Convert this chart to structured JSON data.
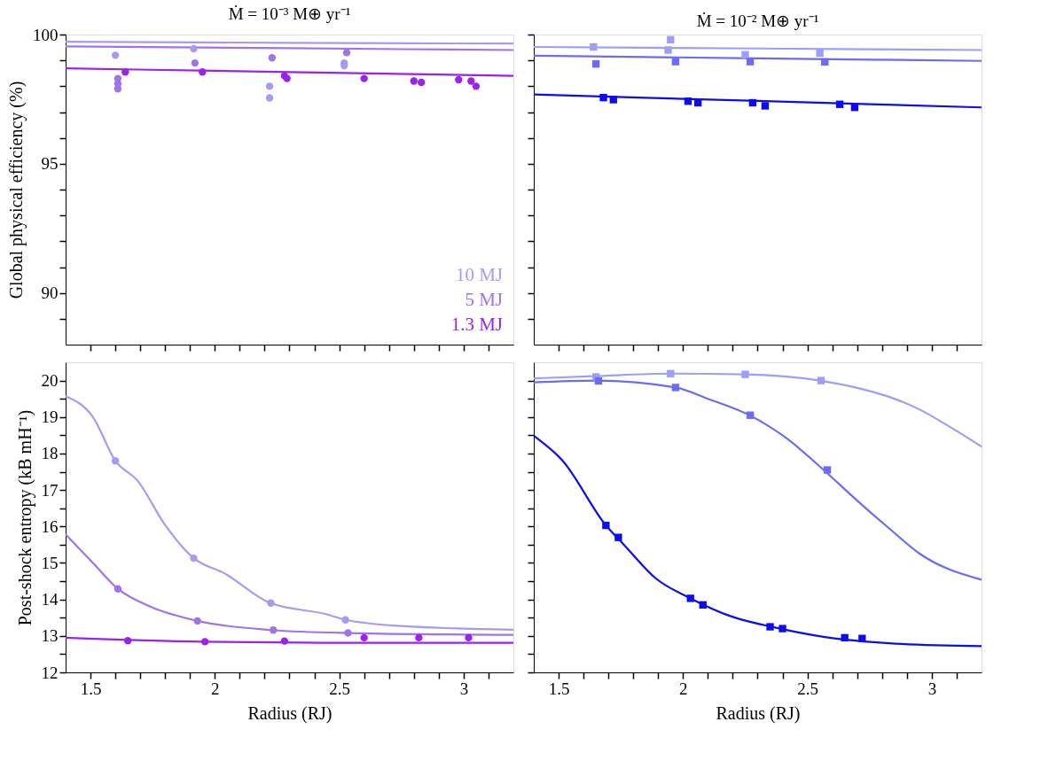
{
  "chart_data": [
    {
      "type": "line",
      "title": "Ṁ = 10⁻³ M⊕ yr⁻¹",
      "ylabel": "Global physical efficiency (%)",
      "xlim": [
        1.4,
        3.2
      ],
      "ylim": [
        88,
        100
      ],
      "xticks": [
        1.5,
        {
          "value": 1.6,
          "label": null
        },
        {
          "value": 1.7,
          "label": null
        },
        {
          "value": 1.8,
          "label": null
        },
        {
          "value": 1.9,
          "label": null
        },
        2,
        {
          "value": 2.1,
          "label": null
        },
        {
          "value": 2.2,
          "label": null
        },
        {
          "value": 2.3,
          "label": null
        },
        {
          "value": 2.4,
          "label": null
        },
        2.5,
        {
          "value": 2.6,
          "label": null
        },
        {
          "value": 2.7,
          "label": null
        },
        {
          "value": 2.8,
          "label": null
        },
        {
          "value": 2.9,
          "label": null
        },
        3,
        {
          "value": 3.1,
          "label": null
        }
      ],
      "yticks": [
        {
          "value": 89,
          "label": null
        },
        90,
        {
          "value": 91,
          "label": null
        },
        {
          "value": 92,
          "label": null
        },
        {
          "value": 93,
          "label": null
        },
        {
          "value": 94,
          "label": null
        },
        95,
        {
          "value": 96,
          "label": null
        },
        {
          "value": 97,
          "label": null
        },
        {
          "value": 98,
          "label": null
        },
        {
          "value": 99,
          "label": null
        },
        100
      ],
      "tick_labels": "y",
      "grid": false,
      "legend": "bottom right",
      "line_style": "solid",
      "series": [
        {
          "name": "10 MJ",
          "color": "#a99af0",
          "marker": "none",
          "x": [
            1.4,
            2.3,
            3.2
          ],
          "values": [
            99.72,
            99.68,
            99.65
          ]
        },
        {
          "name": "5 MJ",
          "color": "#a172ea",
          "marker": "none",
          "x": [
            1.4,
            2.3,
            3.2
          ],
          "values": [
            99.54,
            99.47,
            99.4
          ]
        },
        {
          "name": "1.3 MJ",
          "color": "#9b22ea",
          "marker": "none",
          "x": [
            1.4,
            2.3,
            3.2
          ],
          "values": [
            98.69,
            98.55,
            98.4
          ]
        },
        {
          "type": "scatter",
          "color": "#a99af0",
          "marker": "circle",
          "x": [
            1.6,
            1.915,
            2.22,
            2.22,
            2.52,
            2.52
          ],
          "values": [
            99.2,
            99.45,
            98.0,
            97.55,
            98.9,
            98.8
          ]
        },
        {
          "type": "scatter",
          "color": "#a172ea",
          "marker": "circle",
          "x": [
            1.61,
            1.61,
            1.61,
            1.92,
            2.23,
            2.53
          ],
          "values": [
            98.3,
            98.1,
            97.9,
            98.9,
            99.1,
            99.3
          ]
        },
        {
          "type": "scatter",
          "color": "#9b22ea",
          "marker": "circle",
          "x": [
            1.64,
            1.95,
            2.28,
            2.29,
            2.6,
            2.8,
            2.83,
            2.98,
            3.03,
            3.05
          ],
          "values": [
            98.55,
            98.55,
            98.4,
            98.3,
            98.3,
            98.2,
            98.15,
            98.25,
            98.2,
            98.0
          ]
        }
      ]
    },
    {
      "type": "line",
      "title": "Ṁ = 10⁻² M⊕ yr⁻¹",
      "xlim": [
        1.4,
        3.2
      ],
      "ylim": [
        88,
        100
      ],
      "xticks": [
        1.5,
        {
          "value": 1.6,
          "label": null
        },
        {
          "value": 1.7,
          "label": null
        },
        {
          "value": 1.8,
          "label": null
        },
        {
          "value": 1.9,
          "label": null
        },
        2,
        {
          "value": 2.1,
          "label": null
        },
        {
          "value": 2.2,
          "label": null
        },
        {
          "value": 2.3,
          "label": null
        },
        {
          "value": 2.4,
          "label": null
        },
        2.5,
        {
          "value": 2.6,
          "label": null
        },
        {
          "value": 2.7,
          "label": null
        },
        {
          "value": 2.8,
          "label": null
        },
        {
          "value": 2.9,
          "label": null
        },
        3,
        {
          "value": 3.1,
          "label": null
        }
      ],
      "yticks": [
        {
          "value": 89,
          "label": null
        },
        90,
        {
          "value": 91,
          "label": null
        },
        {
          "value": 92,
          "label": null
        },
        {
          "value": 93,
          "label": null
        },
        {
          "value": 94,
          "label": null
        },
        95,
        {
          "value": 96,
          "label": null
        },
        {
          "value": 97,
          "label": null
        },
        {
          "value": 98,
          "label": null
        },
        {
          "value": 99,
          "label": null
        },
        100
      ],
      "tick_labels": false,
      "grid": false,
      "line_style": "solid",
      "series": [
        {
          "color": "#9d9dfa",
          "marker": "none",
          "x": [
            1.4,
            2.3,
            3.2
          ],
          "values": [
            99.52,
            99.46,
            99.4
          ]
        },
        {
          "color": "#6b6bf6",
          "marker": "none",
          "x": [
            1.4,
            2.3,
            3.2
          ],
          "values": [
            99.18,
            99.08,
            98.98
          ]
        },
        {
          "color": "#0c0cf0",
          "marker": "none",
          "x": [
            1.4,
            2.3,
            3.2
          ],
          "values": [
            97.68,
            97.43,
            97.18
          ]
        },
        {
          "type": "scatter",
          "color": "#9d9dfa",
          "marker": "square",
          "x": [
            1.64,
            1.95,
            1.94,
            2.25,
            2.55
          ],
          "values": [
            99.52,
            99.8,
            99.4,
            99.22,
            99.28
          ]
        },
        {
          "type": "scatter",
          "color": "#6b6bf6",
          "marker": "square",
          "x": [
            1.65,
            1.97,
            2.27,
            2.57
          ],
          "values": [
            98.86,
            98.95,
            98.95,
            98.94
          ]
        },
        {
          "type": "scatter",
          "color": "#0c0cf0",
          "marker": "square",
          "x": [
            1.68,
            1.72,
            2.02,
            2.06,
            2.28,
            2.33,
            2.63,
            2.69
          ],
          "values": [
            97.56,
            97.48,
            97.42,
            97.36,
            97.36,
            97.24,
            97.3,
            97.18
          ]
        }
      ]
    },
    {
      "type": "line",
      "xlabel": "Radius (RJ)",
      "ylabel": "Post-shock entropy (kB mH⁻¹)",
      "xlim": [
        1.4,
        3.2
      ],
      "ylim": [
        12,
        20.5
      ],
      "xticks": [
        1.5,
        {
          "value": 1.6,
          "label": null
        },
        {
          "value": 1.7,
          "label": null
        },
        {
          "value": 1.8,
          "label": null
        },
        {
          "value": 1.9,
          "label": null
        },
        2,
        {
          "value": 2.1,
          "label": null
        },
        {
          "value": 2.2,
          "label": null
        },
        {
          "value": 2.3,
          "label": null
        },
        {
          "value": 2.4,
          "label": null
        },
        2.5,
        {
          "value": 2.6,
          "label": null
        },
        {
          "value": 2.7,
          "label": null
        },
        {
          "value": 2.8,
          "label": null
        },
        {
          "value": 2.9,
          "label": null
        },
        3,
        {
          "value": 3.1,
          "label": null
        }
      ],
      "yticks": [
        12,
        {
          "value": 12.5,
          "label": null
        },
        13,
        {
          "value": 13.5,
          "label": null
        },
        14,
        {
          "value": 14.5,
          "label": null
        },
        15,
        {
          "value": 15.5,
          "label": null
        },
        16,
        {
          "value": 16.5,
          "label": null
        },
        17,
        {
          "value": 17.5,
          "label": null
        },
        18,
        {
          "value": 18.5,
          "label": null
        },
        19,
        {
          "value": 19.5,
          "label": null
        },
        20
      ],
      "grid": false,
      "line_style": "solid",
      "series": [
        {
          "color": "#a99af0",
          "marker": "none",
          "x": [
            1.4,
            1.51,
            1.6,
            1.69,
            1.8,
            1.915,
            2.04,
            2.22,
            2.45,
            2.52,
            2.75,
            3.2
          ],
          "values": [
            19.57,
            19.0,
            17.8,
            17.25,
            16.04,
            15.13,
            14.71,
            13.91,
            13.59,
            13.45,
            13.27,
            13.17
          ]
        },
        {
          "color": "#a172ea",
          "marker": "none",
          "x": [
            1.4,
            1.51,
            1.61,
            1.745,
            1.93,
            2.23,
            2.535,
            3.2
          ],
          "values": [
            15.78,
            15.0,
            14.29,
            13.79,
            13.41,
            13.16,
            13.08,
            13.03
          ]
        },
        {
          "color": "#9b22ea",
          "marker": "none",
          "x": [
            1.4,
            1.95,
            2.51,
            3.2
          ],
          "values": [
            12.95,
            12.84,
            12.81,
            12.81
          ]
        },
        {
          "type": "scatter",
          "color": "#a99af0",
          "marker": "circle",
          "x": [
            1.6,
            1.915,
            2.225,
            2.525
          ],
          "values": [
            17.8,
            15.13,
            13.9,
            13.44
          ]
        },
        {
          "type": "scatter",
          "color": "#a172ea",
          "marker": "circle",
          "x": [
            1.61,
            1.93,
            2.235,
            2.535
          ],
          "values": [
            14.29,
            13.41,
            13.16,
            13.08
          ]
        },
        {
          "type": "scatter",
          "color": "#9b22ea",
          "marker": "circle",
          "x": [
            1.65,
            1.96,
            2.28,
            2.6,
            2.82,
            3.02
          ],
          "values": [
            12.87,
            12.84,
            12.86,
            12.95,
            12.95,
            12.95
          ]
        }
      ]
    },
    {
      "type": "line",
      "xlabel": "Radius (RJ)",
      "xlim": [
        1.4,
        3.2
      ],
      "ylim": [
        12,
        20.5
      ],
      "xticks": [
        1.5,
        {
          "value": 1.6,
          "label": null
        },
        {
          "value": 1.7,
          "label": null
        },
        {
          "value": 1.8,
          "label": null
        },
        {
          "value": 1.9,
          "label": null
        },
        2,
        {
          "value": 2.1,
          "label": null
        },
        {
          "value": 2.2,
          "label": null
        },
        {
          "value": 2.3,
          "label": null
        },
        {
          "value": 2.4,
          "label": null
        },
        2.5,
        {
          "value": 2.6,
          "label": null
        },
        {
          "value": 2.7,
          "label": null
        },
        {
          "value": 2.8,
          "label": null
        },
        {
          "value": 2.9,
          "label": null
        },
        3,
        {
          "value": 3.1,
          "label": null
        }
      ],
      "yticks": [
        12,
        {
          "value": 12.5,
          "label": null
        },
        13,
        {
          "value": 13.5,
          "label": null
        },
        14,
        {
          "value": 14.5,
          "label": null
        },
        15,
        {
          "value": 15.5,
          "label": null
        },
        16,
        {
          "value": 16.5,
          "label": null
        },
        17,
        {
          "value": 17.5,
          "label": null
        },
        18,
        {
          "value": 18.5,
          "label": null
        },
        19,
        {
          "value": 19.5,
          "label": null
        },
        20
      ],
      "tick_labels": "x",
      "grid": false,
      "line_style": "solid",
      "series": [
        {
          "color": "#9d9dfa",
          "marker": "none",
          "x": [
            1.4,
            1.64,
            1.95,
            2.25,
            2.55,
            2.7,
            2.83,
            2.95,
            3.08,
            3.2
          ],
          "values": [
            20.06,
            20.12,
            20.19,
            20.17,
            20.0,
            19.8,
            19.55,
            19.21,
            18.7,
            18.19
          ]
        },
        {
          "color": "#6b6bf6",
          "marker": "none",
          "x": [
            1.4,
            1.65,
            1.97,
            2.1,
            2.27,
            2.41,
            2.57,
            2.7,
            2.83,
            2.95,
            3.2
          ],
          "values": [
            19.95,
            20.0,
            19.81,
            19.5,
            19.04,
            18.45,
            17.52,
            16.71,
            15.94,
            15.26,
            14.54
          ]
        },
        {
          "color": "#0c0cf0",
          "marker": "none",
          "x": [
            1.4,
            1.515,
            1.69,
            1.765,
            1.89,
            2.03,
            2.2,
            2.37,
            2.57,
            2.83,
            3.2
          ],
          "values": [
            18.49,
            17.81,
            16.03,
            15.48,
            14.58,
            14.03,
            13.52,
            13.23,
            12.97,
            12.8,
            12.72
          ]
        },
        {
          "type": "scatter",
          "color": "#9d9dfa",
          "marker": "square",
          "x": [
            1.65,
            1.95,
            2.25,
            2.555
          ],
          "values": [
            20.1,
            20.19,
            20.17,
            20.0
          ]
        },
        {
          "type": "scatter",
          "color": "#6b6bf6",
          "marker": "square",
          "x": [
            1.66,
            1.97,
            2.27,
            2.58
          ],
          "values": [
            19.99,
            19.81,
            19.05,
            17.55
          ]
        },
        {
          "type": "scatter",
          "color": "#0c0cf0",
          "marker": "square",
          "x": [
            1.69,
            1.74,
            2.03,
            2.08,
            2.35,
            2.4,
            2.65,
            2.72
          ],
          "values": [
            16.03,
            15.7,
            14.03,
            13.85,
            13.25,
            13.2,
            12.95,
            12.93
          ]
        }
      ]
    }
  ]
}
